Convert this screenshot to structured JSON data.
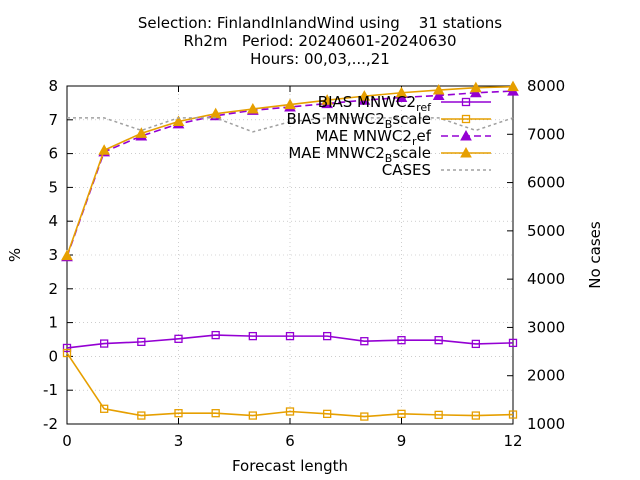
{
  "chart_data": {
    "type": "line",
    "title": [
      "Selection: FinlandInlandWind using    31 stations",
      "Rh2m   Period: 20240601-20240630",
      "Hours: 00,03,...,21"
    ],
    "xlabel": "Forecast length",
    "ylabel": "%",
    "y2label": "No cases",
    "xlim": [
      0,
      12
    ],
    "ylim": [
      -2,
      8
    ],
    "y2lim": [
      1000,
      8000
    ],
    "xticks": [
      "0",
      "3",
      "6",
      "9",
      "12"
    ],
    "yticks": [
      "-2",
      "-1",
      "0",
      "1",
      "2",
      "3",
      "4",
      "5",
      "6",
      "7",
      "8"
    ],
    "y2ticks": [
      "1000",
      "2000",
      "3000",
      "4000",
      "5000",
      "6000",
      "7000",
      "8000"
    ],
    "legend_position": "top-right",
    "x": [
      0,
      1,
      2,
      3,
      4,
      5,
      6,
      7,
      8,
      9,
      10,
      11,
      12
    ],
    "series": [
      {
        "name": "BIAS MNWC2_ref",
        "legend_main": "BIAS MNWC2",
        "legend_sub": "ref",
        "color": "#9400d3",
        "marker": "square",
        "dash": "solid",
        "axis": "y1",
        "values": [
          0.25,
          0.38,
          0.43,
          0.52,
          0.63,
          0.6,
          0.6,
          0.6,
          0.45,
          0.48,
          0.48,
          0.37,
          0.4
        ]
      },
      {
        "name": "BIAS MNWC2_Bscale",
        "legend_main": "BIAS MNWC2",
        "legend_sub": "B",
        "legend_after": "scale",
        "color": "#e69f00",
        "marker": "square",
        "dash": "solid",
        "axis": "y1",
        "values": [
          0.1,
          -1.55,
          -1.75,
          -1.68,
          -1.68,
          -1.75,
          -1.63,
          -1.7,
          -1.78,
          -1.7,
          -1.73,
          -1.75,
          -1.72
        ]
      },
      {
        "name": "MAE MNWC2_ref",
        "legend_main": "MAE MNWC2",
        "legend_sub": "r",
        "legend_after": "ef",
        "color": "#9400d3",
        "marker": "triangle",
        "dash": "dashed",
        "axis": "y1",
        "values": [
          2.95,
          6.05,
          6.52,
          6.88,
          7.12,
          7.28,
          7.38,
          7.48,
          7.58,
          7.66,
          7.72,
          7.8,
          7.85
        ]
      },
      {
        "name": "MAE MNWC2_Bscale",
        "legend_main": "MAE MNWC2",
        "legend_sub": "B",
        "legend_after": "scale",
        "color": "#e69f00",
        "marker": "triangle",
        "dash": "solid",
        "axis": "y1",
        "values": [
          2.98,
          6.1,
          6.6,
          6.95,
          7.18,
          7.32,
          7.45,
          7.58,
          7.7,
          7.8,
          7.88,
          7.95,
          7.98
        ]
      },
      {
        "name": "CASES",
        "legend_main": "CASES",
        "color": "#a0a0a0",
        "marker": "none",
        "dash": "dotted",
        "axis": "y2",
        "values": [
          7340,
          7340,
          7080,
          7340,
          7340,
          7050,
          7260,
          7340,
          7340,
          7340,
          7340,
          7080,
          7340
        ]
      }
    ]
  }
}
